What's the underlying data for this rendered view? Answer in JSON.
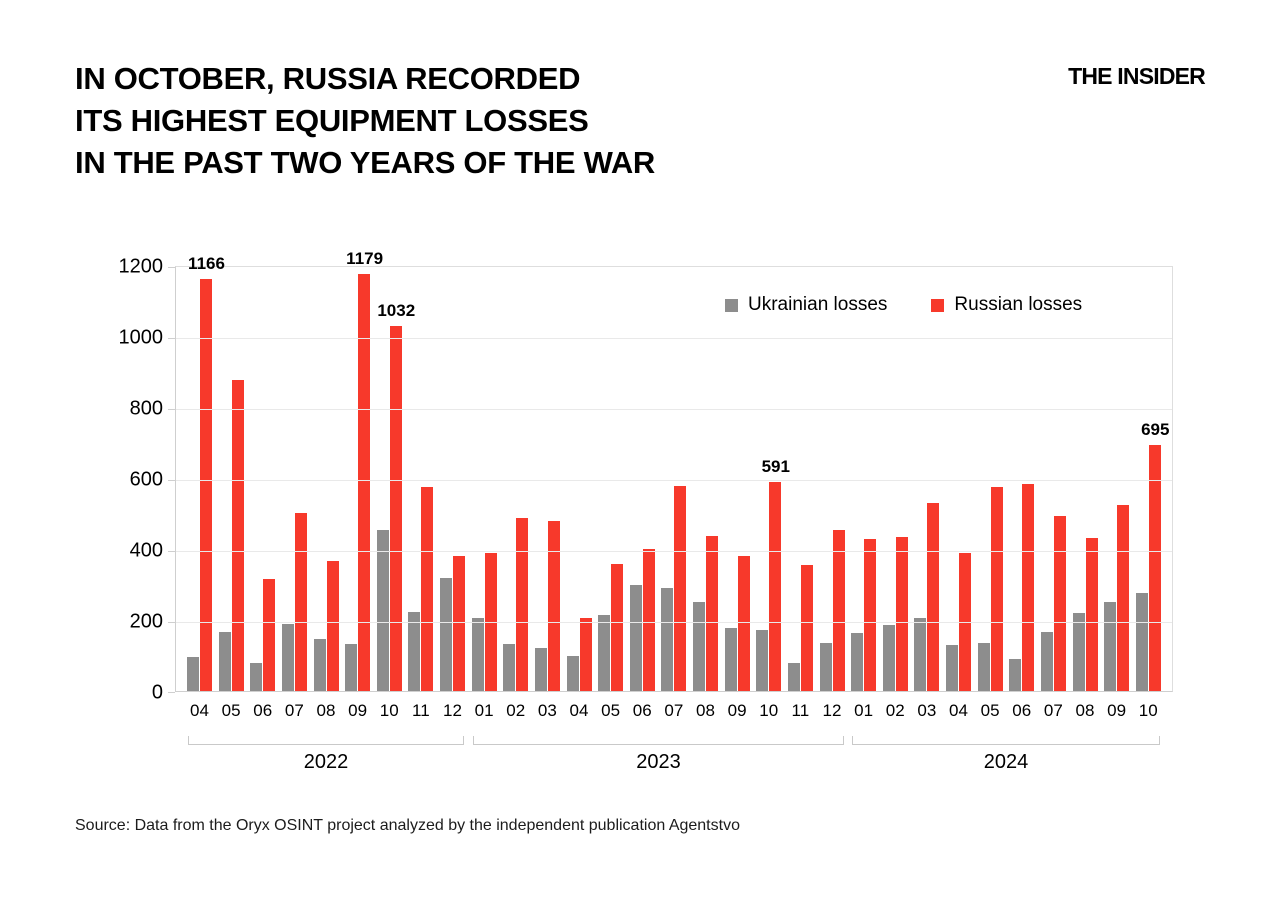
{
  "title_lines": [
    "In October, Russia recorded",
    "its highest equipment losses",
    "in the past two years of the war"
  ],
  "logo": "THE INSIDER",
  "source": "Source: Data from the Oryx OSINT project analyzed by the independent publication Agentstvo",
  "colors": {
    "ukrainian": "#8d8d8d",
    "russian": "#f7392b",
    "grid": "#e9e9e9",
    "axis": "#cfcfcf"
  },
  "chart_data": {
    "type": "bar",
    "title": "In October, Russia recorded its highest equipment losses in the past two years of the war",
    "xlabel": "",
    "ylabel": "",
    "ylim": [
      0,
      1200
    ],
    "yticks": [
      0,
      200,
      400,
      600,
      800,
      1000,
      1200
    ],
    "grid": "horizontal",
    "legend_position": "top-right-inside",
    "categories": [
      "04",
      "05",
      "06",
      "07",
      "08",
      "09",
      "10",
      "11",
      "12",
      "01",
      "02",
      "03",
      "04",
      "05",
      "06",
      "07",
      "08",
      "09",
      "10",
      "11",
      "12",
      "01",
      "02",
      "03",
      "04",
      "05",
      "06",
      "07",
      "08",
      "09",
      "10"
    ],
    "year_groups": [
      {
        "year": "2022",
        "start": 0,
        "count": 9
      },
      {
        "year": "2023",
        "start": 9,
        "count": 12
      },
      {
        "year": "2024",
        "start": 21,
        "count": 10
      }
    ],
    "series": [
      {
        "name": "Ukrainian losses",
        "color": "#8d8d8d",
        "values": [
          97,
          167,
          78,
          190,
          148,
          132,
          456,
          225,
          321,
          208,
          133,
          123,
          98,
          215,
          300,
          291,
          253,
          178,
          172,
          79,
          137,
          163,
          186,
          206,
          129,
          137,
          92,
          166,
          220,
          253,
          276
        ]
      },
      {
        "name": "Russian losses",
        "color": "#f7392b",
        "values": [
          1166,
          880,
          318,
          505,
          367,
          1179,
          1032,
          576,
          381,
          392,
          490,
          481,
          207,
          360,
          402,
          580,
          438,
          381,
          591,
          356,
          456,
          429,
          437,
          531,
          391,
          576,
          586,
          496,
          433,
          527,
          695
        ]
      }
    ],
    "annotations": [
      {
        "index": 0,
        "label": "1166"
      },
      {
        "index": 5,
        "label": "1179"
      },
      {
        "index": 6,
        "label": "1032"
      },
      {
        "index": 18,
        "label": "591"
      },
      {
        "index": 30,
        "label": "695"
      }
    ]
  }
}
